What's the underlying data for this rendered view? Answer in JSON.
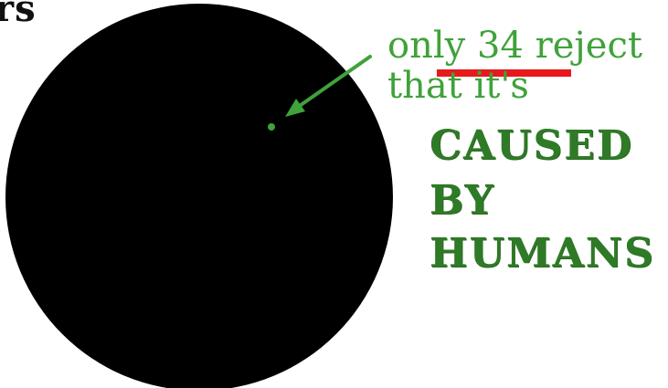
{
  "corner_text": "rs",
  "annotation": {
    "line1_prefix": "only ",
    "line1_number": "34",
    "line1_suffix": " reject",
    "line2": "that it's"
  },
  "caps": {
    "line1": "CAUSED",
    "line2": "BY",
    "line3": "HUMANS"
  },
  "colors": {
    "circle": "#000000",
    "green_light": "#3fa23a",
    "green_dark": "#2f7a27",
    "underline": "#e8191d",
    "arrow": "#3fa23a"
  }
}
